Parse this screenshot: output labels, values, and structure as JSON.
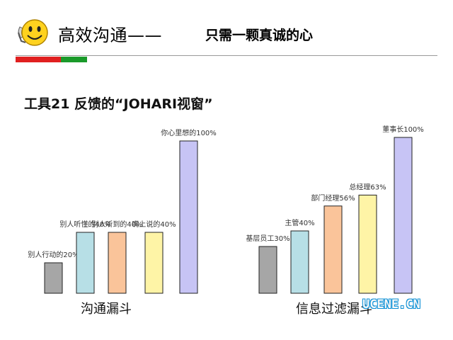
{
  "header": {
    "title": "高效沟通——",
    "subtitle": "只需一颗真诚的心",
    "icon": "smiley-phone-icon",
    "colors": {
      "red": "#e02020",
      "green": "#1a9a2a",
      "rule": "#9a9a9a"
    }
  },
  "section": {
    "title": "工具21  反馈的“JOHARI视窗”"
  },
  "chart_data": [
    {
      "type": "bar",
      "categories": [
        "别人行动的",
        "别人听懂的",
        "别人听到的",
        "嘴上说的",
        "你心里想的"
      ],
      "values": [
        20,
        40,
        40,
        40,
        100
      ],
      "data_labels": [
        "别人行动的20%",
        "别人听懂的40%",
        "别人听到的40%",
        "嘴上说的40%",
        "你心里想的100%"
      ],
      "colors": [
        "#a6a6a6",
        "#b7dfe6",
        "#fac49a",
        "#fef4a6",
        "#c7c4f5"
      ],
      "title": "沟通漏斗"
    },
    {
      "type": "bar",
      "categories": [
        "基层员工",
        "主管",
        "部门经理",
        "总经理",
        "董事长"
      ],
      "values": [
        30,
        40,
        56,
        63,
        100
      ],
      "data_labels": [
        "基层员工30%",
        "主管40%",
        "部门经理56%",
        "总经理63%",
        "董事长100%"
      ],
      "colors": [
        "#a6a6a6",
        "#b7dfe6",
        "#fac49a",
        "#fef4a6",
        "#c7c4f5"
      ],
      "title": "信息过滤漏斗"
    }
  ],
  "watermark": "UCENE.CN"
}
